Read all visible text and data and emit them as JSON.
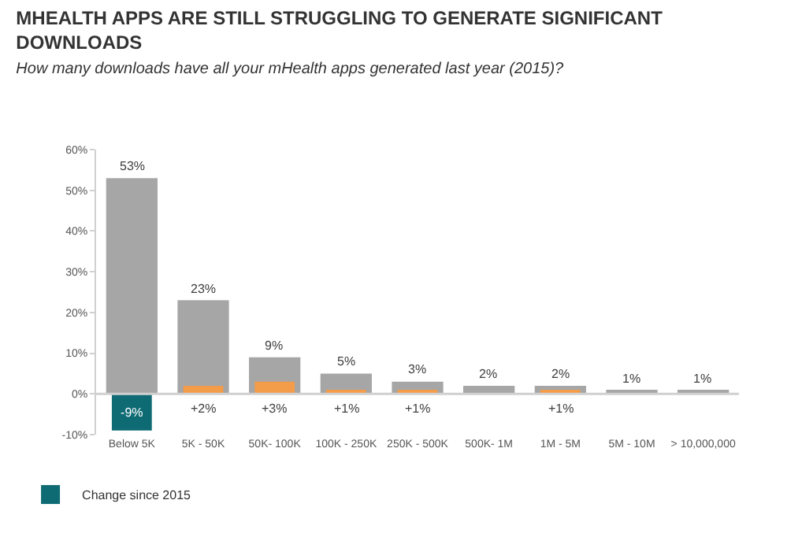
{
  "chart_data": {
    "type": "bar",
    "title": "MHEALTH APPS ARE STILL STRUGGLING TO GENERATE SIGNIFICANT DOWNLOADS",
    "subtitle": "How many downloads have all your mHealth apps generated last year (2015)?",
    "categories": [
      "Below 5K",
      "5K - 50K",
      "50K- 100K",
      "100K - 250K",
      "250K - 500K",
      "500K- 1M",
      "1M - 5M",
      "5M - 10M",
      "> 10,000,000"
    ],
    "series": [
      {
        "color": "#a6a6a6",
        "values": [
          53,
          23,
          9,
          5,
          3,
          2,
          2,
          1,
          1
        ],
        "value_labels": [
          "53%",
          "23%",
          "9%",
          "5%",
          "3%",
          "2%",
          "2%",
          "1%",
          "1%"
        ]
      },
      {
        "name": "Change since 2015",
        "colors": [
          "#0e6b74",
          "#f39c4a",
          "#f39c4a",
          "#f39c4a",
          "#f39c4a",
          null,
          "#f39c4a",
          null,
          null
        ],
        "values": [
          -9,
          2,
          3,
          1,
          1,
          null,
          1,
          null,
          null
        ],
        "value_labels": [
          "-9%",
          "+2%",
          "+3%",
          "+1%",
          "+1%",
          null,
          "+1%",
          null,
          null
        ]
      }
    ],
    "ylim": [
      -10,
      60
    ],
    "yticks": [
      {
        "value": -10,
        "label": "-10%"
      },
      {
        "value": 0,
        "label": "0%"
      },
      {
        "value": 10,
        "label": "10%"
      },
      {
        "value": 20,
        "label": "20%"
      },
      {
        "value": 30,
        "label": "30%"
      },
      {
        "value": 40,
        "label": "40%"
      },
      {
        "value": 50,
        "label": "50%"
      },
      {
        "value": 60,
        "label": "60%"
      }
    ],
    "ref_lines": [
      {
        "axis": "y",
        "value": 0,
        "color": "#d0d0d0"
      }
    ],
    "grid": false,
    "legend": "bottom left"
  }
}
